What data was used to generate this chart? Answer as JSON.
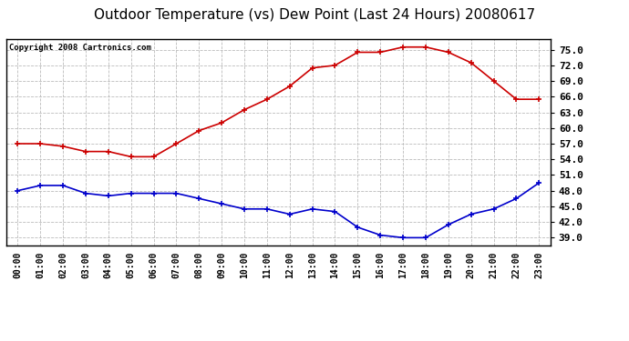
{
  "title": "Outdoor Temperature (vs) Dew Point (Last 24 Hours) 20080617",
  "copyright": "Copyright 2008 Cartronics.com",
  "hours": [
    "00:00",
    "01:00",
    "02:00",
    "03:00",
    "04:00",
    "05:00",
    "06:00",
    "07:00",
    "08:00",
    "09:00",
    "10:00",
    "11:00",
    "12:00",
    "13:00",
    "14:00",
    "15:00",
    "16:00",
    "17:00",
    "18:00",
    "19:00",
    "20:00",
    "21:00",
    "22:00",
    "23:00"
  ],
  "temp": [
    57.0,
    57.0,
    56.5,
    55.5,
    55.5,
    54.5,
    54.5,
    57.0,
    59.5,
    61.0,
    63.5,
    65.5,
    68.0,
    71.5,
    72.0,
    74.5,
    74.5,
    75.5,
    75.5,
    74.5,
    72.5,
    69.0,
    65.5,
    65.5
  ],
  "dew": [
    48.0,
    49.0,
    49.0,
    47.5,
    47.0,
    47.5,
    47.5,
    47.5,
    46.5,
    45.5,
    44.5,
    44.5,
    43.5,
    44.5,
    44.0,
    41.0,
    39.5,
    39.0,
    39.0,
    41.5,
    43.5,
    44.5,
    46.5,
    49.5
  ],
  "temp_color": "#cc0000",
  "dew_color": "#0000cc",
  "ylim_min": 37.5,
  "ylim_max": 77.0,
  "yticks": [
    39.0,
    42.0,
    45.0,
    48.0,
    51.0,
    54.0,
    57.0,
    60.0,
    63.0,
    66.0,
    69.0,
    72.0,
    75.0
  ],
  "bg_color": "#ffffff",
  "grid_color": "#bbbbbb",
  "title_fontsize": 11,
  "copyright_fontsize": 6.5,
  "tick_fontsize": 7,
  "ytick_fontsize": 8
}
